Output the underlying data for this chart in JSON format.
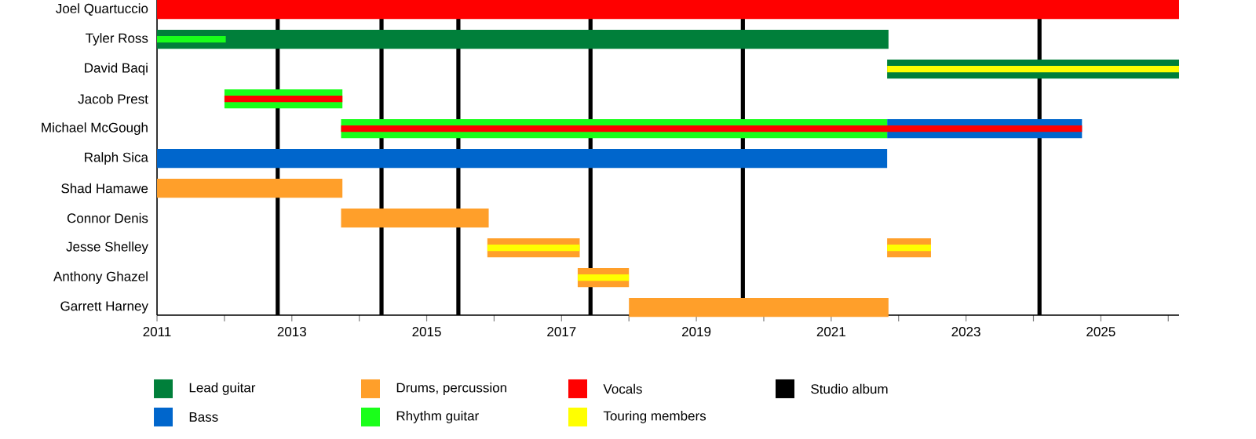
{
  "chart_data": {
    "type": "bar",
    "orientation": "horizontal",
    "categories": [
      "Joel Quartuccio",
      "Tyler Ross",
      "David Baqi",
      "Jacob Prest",
      "Michael McGough",
      "Ralph Sica",
      "Shad Hamawe",
      "Connor Denis",
      "Jesse Shelley",
      "Anthony Ghazel",
      "Garrett Harney"
    ],
    "series": [
      {
        "name": "Lead guitar",
        "color": "#007f3a",
        "base": [
          null,
          2011,
          2021.83,
          null,
          null,
          null,
          null,
          null,
          null,
          null,
          null
        ],
        "values": [
          null,
          10.85,
          4.33,
          null,
          null,
          null,
          null,
          null,
          null,
          null,
          null
        ]
      },
      {
        "name": "Bass",
        "color": "#0066cc",
        "base": [
          null,
          null,
          null,
          null,
          2021.83,
          2011,
          null,
          null,
          null,
          null,
          null
        ],
        "values": [
          null,
          null,
          null,
          null,
          2.89,
          10.83,
          null,
          null,
          null,
          null,
          null
        ]
      },
      {
        "name": "Drums, percussion",
        "color": "#ff9f2a",
        "base": [
          null,
          null,
          null,
          null,
          null,
          null,
          2011,
          2013.73,
          2015.9,
          2017.24,
          2018.0
        ],
        "values": [
          null,
          null,
          null,
          null,
          null,
          null,
          2.75,
          2.19,
          1.37,
          0.76,
          3.85
        ]
      },
      {
        "name": "Rhythm guitar",
        "color": "#1aff1a",
        "base": [
          null,
          2011,
          null,
          2012.0,
          2013.73,
          null,
          null,
          null,
          null,
          null,
          null
        ],
        "values": [
          null,
          1.02,
          null,
          1.75,
          8.1,
          null,
          null,
          null,
          null,
          null,
          null
        ]
      },
      {
        "name": "Vocals",
        "color": "#ff0000",
        "base": [
          2011,
          null,
          null,
          2012.0,
          2013.73,
          null,
          null,
          null,
          null,
          null,
          null
        ],
        "values": [
          15.16,
          null,
          null,
          1.75,
          10.99,
          null,
          null,
          null,
          null,
          null,
          null
        ]
      },
      {
        "name": "Touring members",
        "color": "#ffff00",
        "base": [
          null,
          null,
          2021.83,
          null,
          null,
          null,
          null,
          null,
          2015.9,
          2017.24,
          null
        ],
        "values": [
          null,
          null,
          4.33,
          null,
          null,
          null,
          null,
          null,
          1.37,
          0.76,
          null
        ]
      },
      {
        "color": "#ff9f2a",
        "base": [
          null,
          null,
          null,
          null,
          null,
          null,
          null,
          null,
          2021.83,
          null,
          null
        ],
        "values": [
          null,
          null,
          null,
          null,
          null,
          null,
          null,
          null,
          0.65,
          null,
          null
        ]
      },
      {
        "color": "#ffff00",
        "base": [
          null,
          null,
          null,
          null,
          null,
          null,
          null,
          null,
          2021.83,
          null,
          null
        ],
        "values": [
          null,
          null,
          null,
          null,
          null,
          null,
          null,
          null,
          0.65,
          null,
          null
        ]
      }
    ],
    "ref_lines": [
      {
        "axis": "x",
        "value": 2012.79,
        "color": "#000000",
        "label": "Studio album"
      },
      {
        "axis": "x",
        "value": 2014.33,
        "color": "#000000"
      },
      {
        "axis": "x",
        "value": 2015.47,
        "color": "#000000"
      },
      {
        "axis": "x",
        "value": 2017.43,
        "color": "#000000"
      },
      {
        "axis": "x",
        "value": 2019.69,
        "color": "#000000"
      },
      {
        "axis": "x",
        "value": 2024.09,
        "color": "#000000"
      }
    ],
    "xlim": [
      2011,
      2026.16
    ],
    "xticks": [
      2011,
      {
        "value": 2012,
        "label": null
      },
      2013,
      {
        "value": 2014,
        "label": null
      },
      2015,
      {
        "value": 2016,
        "label": null
      },
      2017,
      {
        "value": 2018,
        "label": null
      },
      2019,
      {
        "value": 2020,
        "label": null
      },
      2021,
      {
        "value": 2022,
        "label": null
      },
      2023,
      {
        "value": 2024,
        "label": null
      },
      2025,
      {
        "value": 2026,
        "label": null
      }
    ],
    "legend": "bottom"
  }
}
